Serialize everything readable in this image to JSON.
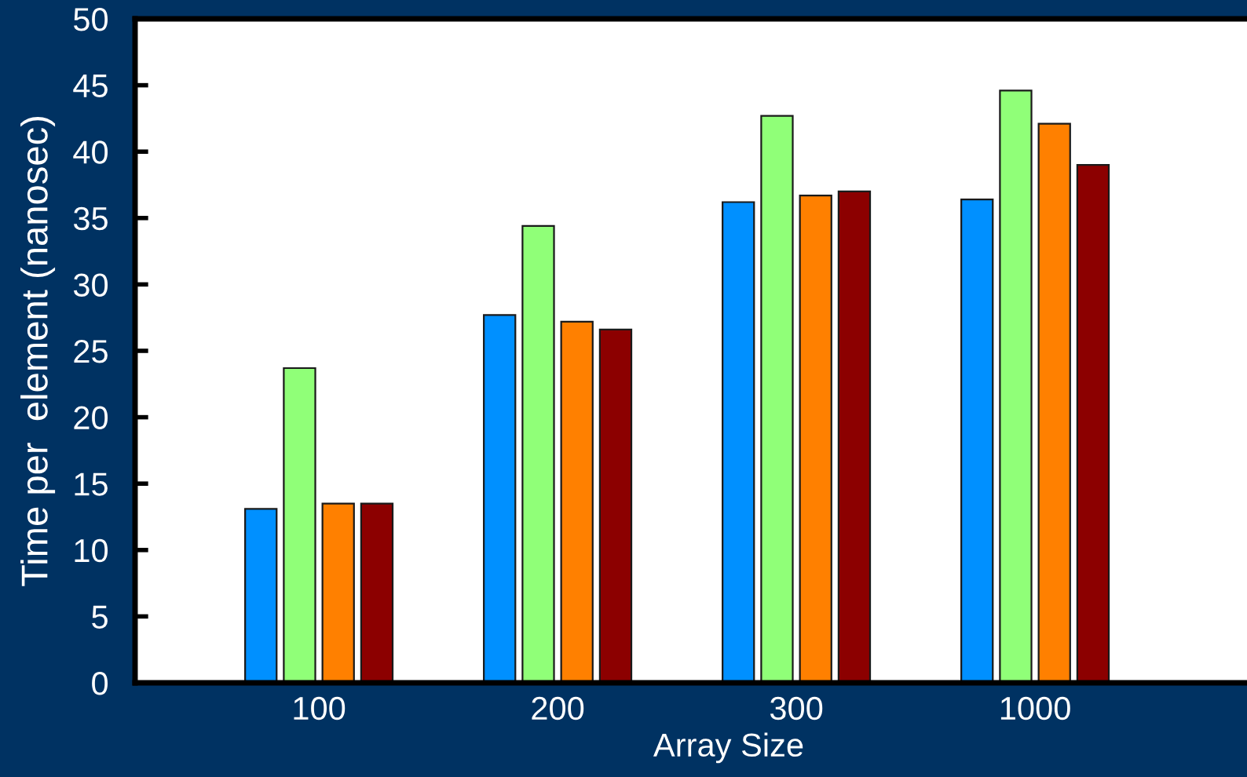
{
  "chart_data": {
    "type": "bar",
    "xlabel": "Array Size",
    "ylabel": "Time per  element (nanosec)",
    "categories": [
      "100",
      "200",
      "300",
      "1000"
    ],
    "series": [
      {
        "color": "#0090ff",
        "values": [
          13.1,
          27.7,
          36.2,
          36.4
        ]
      },
      {
        "color": "#90ff78",
        "values": [
          23.7,
          34.4,
          42.7,
          44.6
        ]
      },
      {
        "color": "#ff8000",
        "values": [
          13.5,
          27.2,
          36.7,
          42.1
        ]
      },
      {
        "color": "#8c0000",
        "values": [
          13.5,
          26.6,
          37.0,
          39.0
        ]
      }
    ],
    "ylim": [
      0,
      50
    ],
    "yticks": [
      0,
      5,
      10,
      15,
      20,
      25,
      30,
      35,
      40,
      45,
      50
    ],
    "grid": false
  }
}
